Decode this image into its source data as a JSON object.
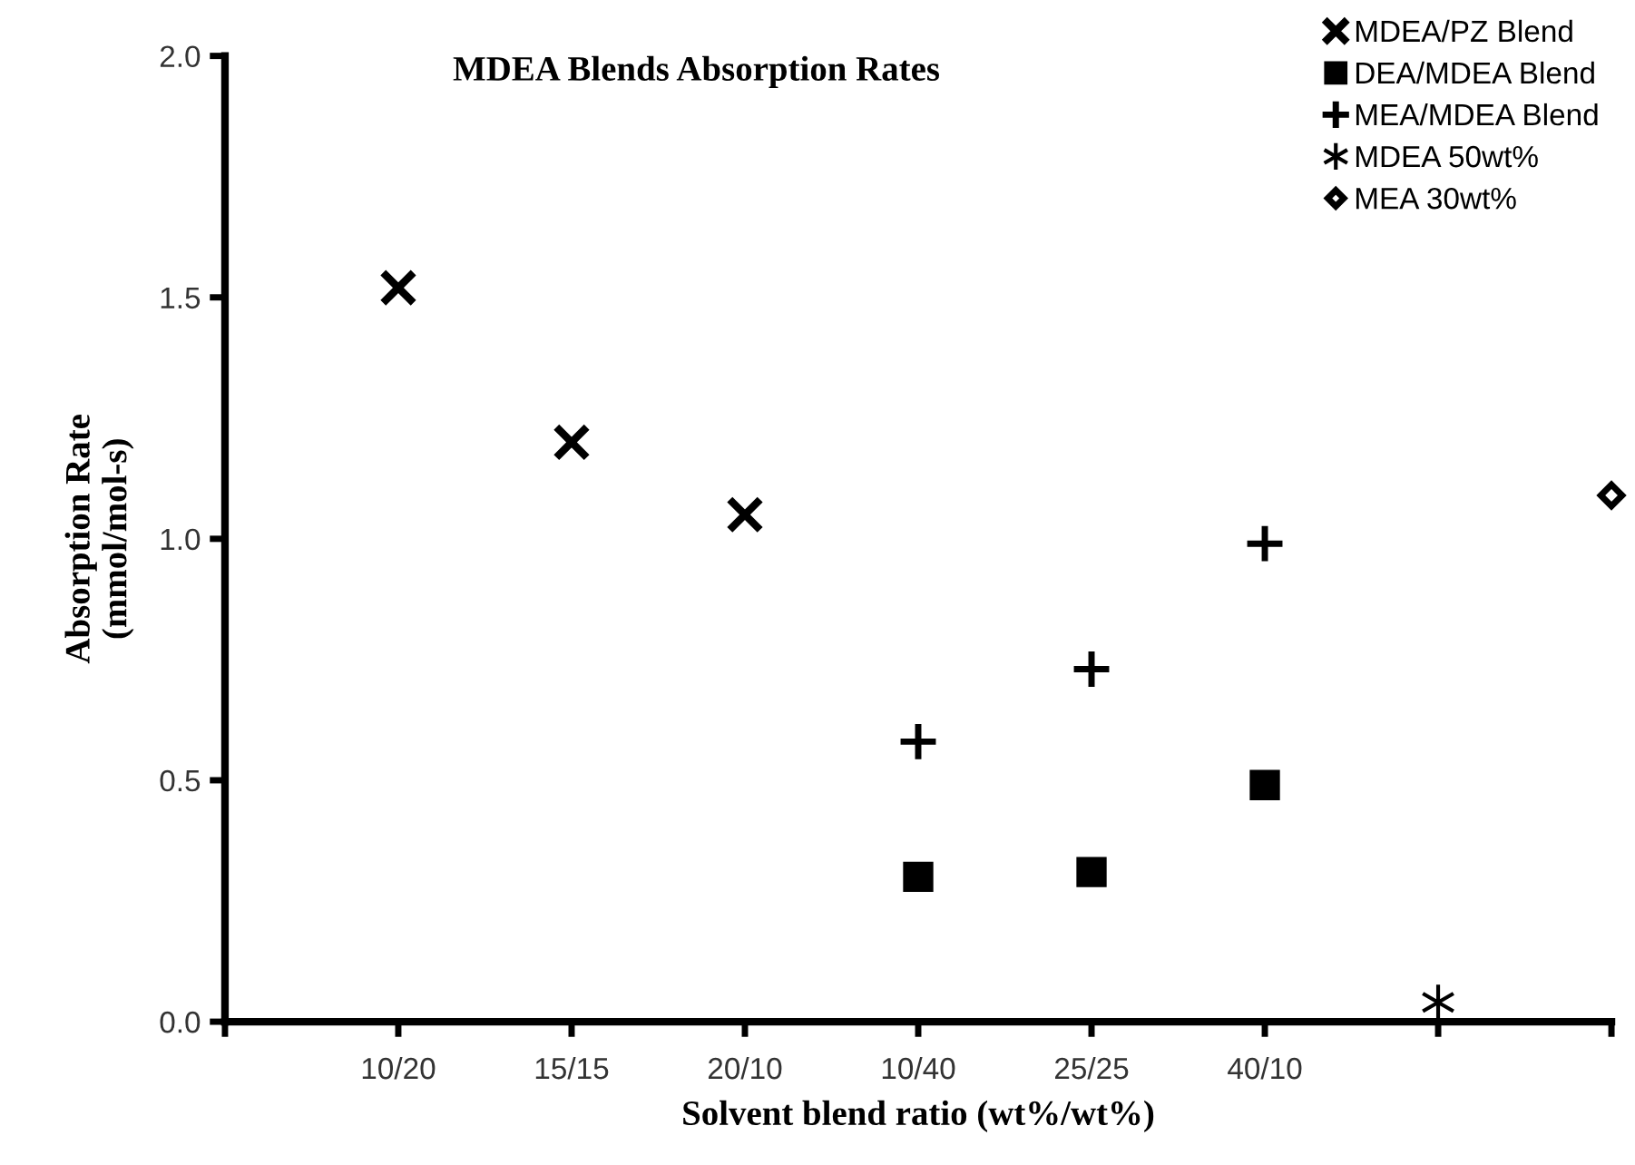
{
  "chart_data": {
    "type": "scatter",
    "title": "MDEA Blends Absorption Rates",
    "xlabel": "Solvent blend ratio (wt%/wt%)",
    "ylabel": "Absorption Rate\n(mmol/mol-s)",
    "categories": [
      null,
      "10/20",
      "15/15",
      "20/10",
      "10/40",
      "25/25",
      "40/10",
      null,
      null
    ],
    "ylim": [
      0,
      2
    ],
    "yticks": [
      {
        "value": 0,
        "label": "0.0"
      },
      {
        "value": 0.5,
        "label": "0.5"
      },
      {
        "value": 1,
        "label": "1.0"
      },
      {
        "value": 1.5,
        "label": "1.5"
      },
      {
        "value": 2,
        "label": "2.0"
      }
    ],
    "grid": false,
    "legend": "top right",
    "series": [
      {
        "name": "MDEA/PZ Blend",
        "color": "#000000",
        "marker": "cross",
        "values": [
          null,
          1.52,
          1.2,
          1.05,
          null,
          null,
          null,
          null,
          null
        ]
      },
      {
        "name": "DEA/MDEA Blend",
        "color": "#000000",
        "marker": "square",
        "values": [
          null,
          null,
          null,
          null,
          0.3,
          0.31,
          0.49,
          null,
          null
        ]
      },
      {
        "name": "MEA/MDEA Blend",
        "color": "#000000",
        "marker": "plus",
        "values": [
          null,
          null,
          null,
          null,
          0.58,
          0.73,
          0.99,
          null,
          null
        ]
      },
      {
        "name": "MDEA 50wt%",
        "color": "#000000",
        "values": [
          null,
          null,
          null,
          null,
          null,
          null,
          null,
          0.04,
          null
        ]
      },
      {
        "name": "MEA 30wt%",
        "color": "#000000",
        "marker": "diamond",
        "values": [
          null,
          null,
          null,
          null,
          null,
          null,
          null,
          null,
          1.09
        ]
      }
    ]
  }
}
